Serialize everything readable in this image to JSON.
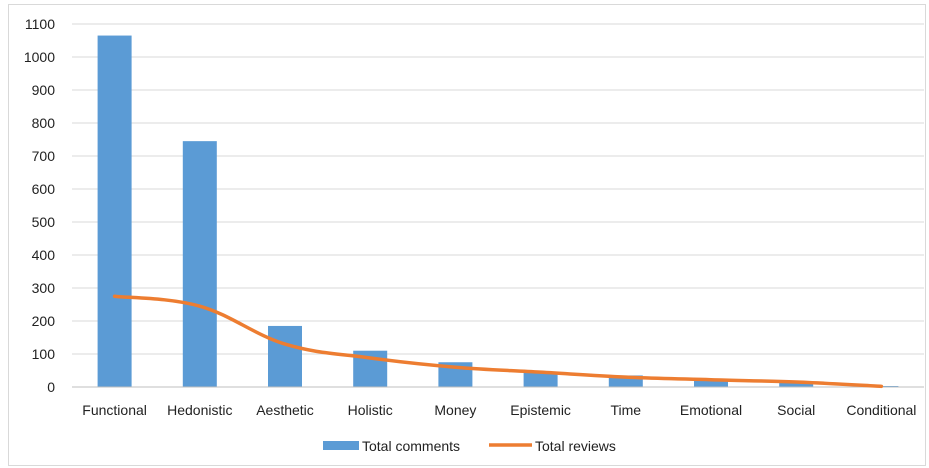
{
  "chart_data": {
    "type": "bar",
    "title": "",
    "xlabel": "",
    "ylabel": "",
    "categories": [
      "Functional",
      "Hedonistic",
      "Aesthetic",
      "Holistic",
      "Money",
      "Epistemic",
      "Time",
      "Emotional",
      "Social",
      "Conditional"
    ],
    "ylim": [
      0,
      1100
    ],
    "yticks": [
      0,
      100,
      200,
      300,
      400,
      500,
      600,
      700,
      800,
      900,
      1000,
      1100
    ],
    "grid": true,
    "legend_position": "bottom",
    "series": [
      {
        "name": "Total comments",
        "type": "bar",
        "color": "#5b9bd5",
        "values": [
          1065,
          745,
          185,
          110,
          75,
          45,
          35,
          25,
          15,
          3
        ]
      },
      {
        "name": "Total reviews",
        "type": "line",
        "color": "#ed7d31",
        "values": [
          275,
          245,
          130,
          88,
          60,
          45,
          30,
          22,
          15,
          2
        ]
      }
    ]
  }
}
